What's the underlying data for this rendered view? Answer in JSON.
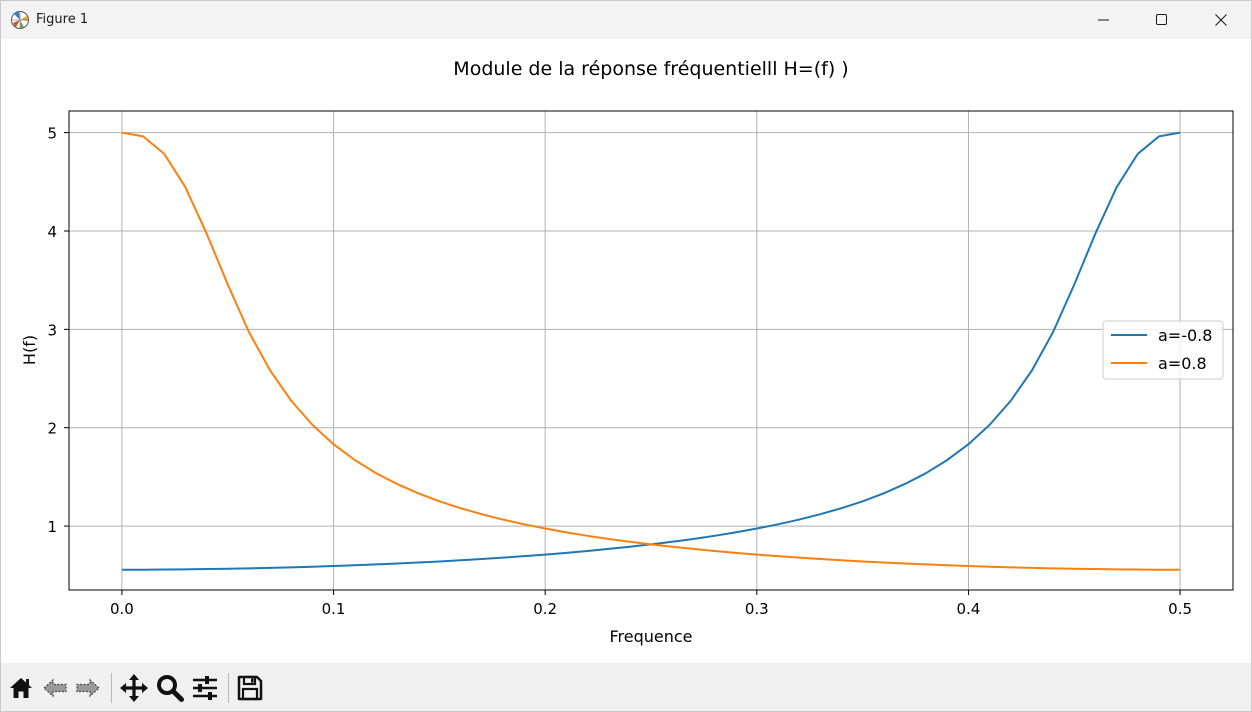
{
  "window": {
    "title": "Figure 1"
  },
  "chart_data": {
    "type": "line",
    "title": "Module de la réponse fréquentielll H=(f) )",
    "xlabel": "Frequence",
    "ylabel": "H(f)",
    "xlim": [
      -0.025,
      0.525
    ],
    "ylim": [
      0.35,
      5.22
    ],
    "xticks": [
      0.0,
      0.1,
      0.2,
      0.3,
      0.4,
      0.5
    ],
    "xtick_labels": [
      "0.0",
      "0.1",
      "0.2",
      "0.3",
      "0.4",
      "0.5"
    ],
    "yticks": [
      1,
      2,
      3,
      4,
      5
    ],
    "ytick_labels": [
      "1",
      "2",
      "3",
      "4",
      "5"
    ],
    "grid": true,
    "legend_position": "center-right",
    "x": [
      0.0,
      0.01,
      0.02,
      0.03,
      0.04,
      0.05,
      0.06,
      0.07,
      0.08,
      0.09,
      0.1,
      0.11,
      0.12,
      0.13,
      0.14,
      0.15,
      0.16,
      0.17,
      0.18,
      0.19,
      0.2,
      0.21,
      0.22,
      0.23,
      0.24,
      0.25,
      0.26,
      0.27,
      0.28,
      0.29,
      0.3,
      0.31,
      0.32,
      0.33,
      0.34,
      0.35,
      0.36,
      0.37,
      0.38,
      0.39,
      0.4,
      0.41,
      0.42,
      0.43,
      0.44,
      0.45,
      0.46,
      0.47,
      0.48,
      0.49,
      0.5
    ],
    "series": [
      {
        "name": "a=-0.8",
        "color": "#1f77b4",
        "values": [
          0.556,
          0.556,
          0.558,
          0.56,
          0.563,
          0.566,
          0.57,
          0.575,
          0.58,
          0.587,
          0.594,
          0.601,
          0.61,
          0.619,
          0.629,
          0.64,
          0.652,
          0.665,
          0.679,
          0.694,
          0.71,
          0.728,
          0.747,
          0.768,
          0.79,
          0.814,
          0.84,
          0.869,
          0.901,
          0.936,
          0.975,
          1.018,
          1.066,
          1.121,
          1.182,
          1.252,
          1.333,
          1.428,
          1.539,
          1.672,
          1.832,
          2.029,
          2.274,
          2.583,
          2.973,
          3.456,
          3.975,
          4.444,
          4.784,
          4.962,
          5.0
        ]
      },
      {
        "name": "a=0.8",
        "color": "#ff7f0e",
        "values": [
          5.0,
          4.962,
          4.784,
          4.444,
          3.975,
          3.456,
          2.973,
          2.583,
          2.274,
          2.029,
          1.832,
          1.672,
          1.539,
          1.428,
          1.333,
          1.252,
          1.182,
          1.121,
          1.066,
          1.018,
          0.975,
          0.936,
          0.901,
          0.869,
          0.84,
          0.814,
          0.79,
          0.768,
          0.747,
          0.728,
          0.71,
          0.694,
          0.679,
          0.665,
          0.652,
          0.64,
          0.629,
          0.619,
          0.61,
          0.601,
          0.594,
          0.587,
          0.58,
          0.575,
          0.57,
          0.566,
          0.563,
          0.56,
          0.558,
          0.556,
          0.556
        ]
      }
    ]
  }
}
